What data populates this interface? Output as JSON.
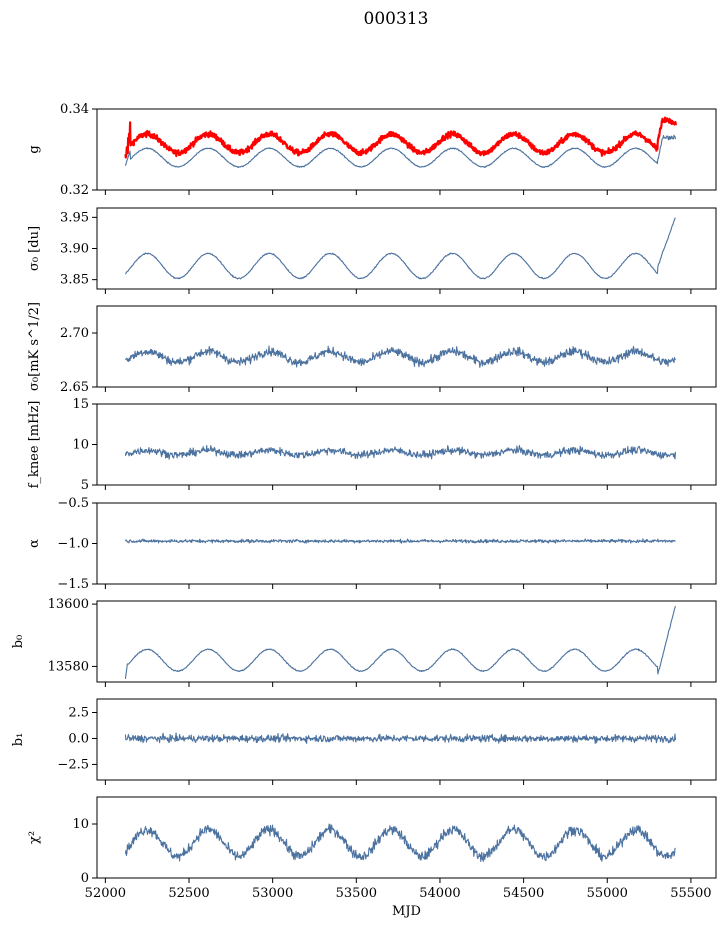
{
  "figure": {
    "title": "000313"
  },
  "chart_data": [
    {
      "type": "line",
      "ylabel": "g",
      "ylim": [
        0.32,
        0.34
      ],
      "yticks": [
        "0.32",
        "0.34"
      ],
      "xlim": [
        51950,
        55650
      ],
      "xtick_labels_shown": false,
      "series": [
        {
          "color": "#ff0000",
          "base": 0.3315,
          "amp": 0.0023,
          "trend": [
            [
              52120,
              0.328
            ],
            [
              52150,
              0.3345
            ],
            [
              55300,
              0.3315
            ],
            [
              55330,
              0.3375
            ],
            [
              55410,
              0.3365
            ]
          ]
        },
        {
          "color": "#4c72a0",
          "base": 0.328,
          "amp": 0.0023,
          "trend": [
            [
              52120,
              0.326
            ],
            [
              52150,
              0.33
            ],
            [
              55300,
              0.327
            ],
            [
              55330,
              0.333
            ],
            [
              55410,
              0.333
            ]
          ]
        }
      ]
    },
    {
      "type": "line",
      "ylabel": "σ₀ [du]",
      "ylim": [
        3.835,
        3.965
      ],
      "yticks": [
        "3.85",
        "3.90",
        "3.95"
      ],
      "xlim": [
        51950,
        55650
      ],
      "xtick_labels_shown": false,
      "series": [
        {
          "color": "#4c72a0",
          "base": 3.872,
          "amp": 0.02,
          "end_rise": [
            [
              55300,
              3.87
            ],
            [
              55410,
              3.952
            ]
          ]
        }
      ]
    },
    {
      "type": "line",
      "ylabel": "σ₀[mK s^1/2]",
      "ylim": [
        2.65,
        2.725
      ],
      "yticks": [
        "2.65",
        "2.70"
      ],
      "xlim": [
        51950,
        55650
      ],
      "xtick_labels_shown": false,
      "series": [
        {
          "color": "#4c72a0",
          "base": 2.678,
          "amp": 0.005,
          "noise": 0.007
        }
      ]
    },
    {
      "type": "line",
      "ylabel": "f_knee [mHz]",
      "ylim": [
        5,
        15
      ],
      "yticks": [
        "5",
        "10",
        "15"
      ],
      "xlim": [
        51950,
        55650
      ],
      "xtick_labels_shown": false,
      "series": [
        {
          "color": "#4c72a0",
          "base": 9.0,
          "amp": 0.3,
          "noise": 0.8
        }
      ]
    },
    {
      "type": "line",
      "ylabel": "α",
      "ylim": [
        -1.5,
        -0.5
      ],
      "yticks": [
        "−1.5",
        "−1.0",
        "−0.5"
      ],
      "xlim": [
        51950,
        55650
      ],
      "xtick_labels_shown": false,
      "series": [
        {
          "color": "#4c72a0",
          "base": -0.97,
          "amp": 0.0,
          "noise": 0.035
        }
      ]
    },
    {
      "type": "line",
      "ylabel": "b₀",
      "ylim": [
        13575,
        13601
      ],
      "yticks": [
        "13580",
        "13600"
      ],
      "xlim": [
        51950,
        55650
      ],
      "xtick_labels_shown": false,
      "series": [
        {
          "color": "#4c72a0",
          "base": 13582,
          "amp": 3.5,
          "start_drop": 13576,
          "end_rise": [
            [
              55300,
              13577
            ],
            [
              55410,
              13600
            ]
          ]
        }
      ]
    },
    {
      "type": "line",
      "ylabel": "b₁",
      "ylim": [
        -4.0,
        3.8
      ],
      "yticks": [
        "−2.5",
        "0.0",
        "2.5"
      ],
      "xlim": [
        51950,
        55650
      ],
      "xtick_labels_shown": false,
      "series": [
        {
          "color": "#4c72a0",
          "base": 0.0,
          "amp": 0.0,
          "noise": 0.6
        }
      ]
    },
    {
      "type": "line",
      "ylabel": "χ²",
      "xlabel": "MJD",
      "ylim": [
        0,
        15
      ],
      "yticks": [
        "0",
        "10"
      ],
      "xlim": [
        51950,
        55650
      ],
      "xticks": [
        "52000",
        "52500",
        "53000",
        "53500",
        "54000",
        "54500",
        "55000",
        "55500"
      ],
      "xtick_labels_shown": true,
      "series": [
        {
          "color": "#4c72a0",
          "base": 6.5,
          "amp": 2.5,
          "noise": 1.6
        }
      ]
    }
  ]
}
